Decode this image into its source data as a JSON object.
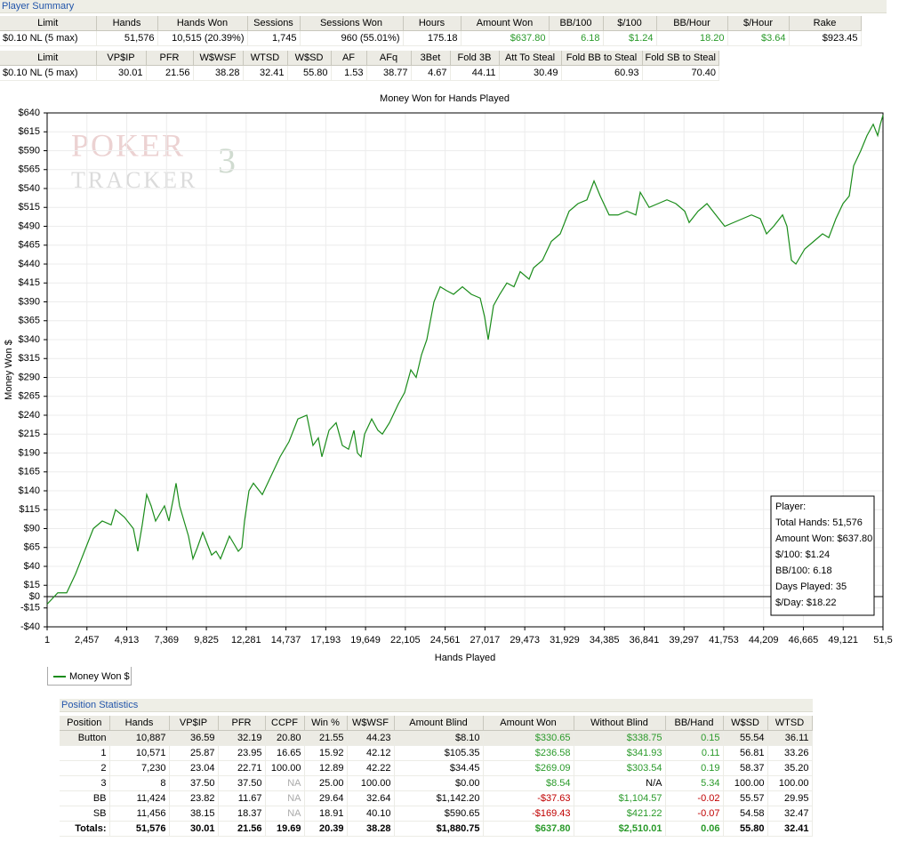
{
  "player_summary": {
    "title": "Player Summary",
    "tables": [
      {
        "headers": [
          "Limit",
          "Hands",
          "Hands Won",
          "Sessions",
          "Sessions Won",
          "Hours",
          "Amount Won",
          "BB/100",
          "$/100",
          "BB/Hour",
          "$/Hour",
          "Rake"
        ],
        "rows": [
          [
            "$0.10 NL (5 max)",
            "51,576",
            "10,515 (20.39%)",
            "1,745",
            "960 (55.01%)",
            "175.18",
            "$637.80",
            "6.18",
            "$1.24",
            "18.20",
            "$3.64",
            "$923.45"
          ]
        ]
      },
      {
        "headers": [
          "Limit",
          "VP$IP",
          "PFR",
          "W$WSF",
          "WTSD",
          "W$SD",
          "AF",
          "AFq",
          "3Bet",
          "Fold 3B",
          "Att To Steal",
          "Fold BB to Steal",
          "Fold SB to Steal"
        ],
        "rows": [
          [
            "$0.10 NL (5 max)",
            "30.01",
            "21.56",
            "38.28",
            "32.41",
            "55.80",
            "1.53",
            "38.77",
            "4.67",
            "44.11",
            "30.49",
            "60.93",
            "70.40"
          ]
        ]
      }
    ]
  },
  "chart_data": {
    "type": "line",
    "title": "Money Won for Hands Played",
    "x_label": "Hands Played",
    "y_label": "Money Won $",
    "watermark": {
      "line1": "POKER",
      "line2": "TRACKER",
      "badge": "3"
    },
    "x": [
      1,
      658,
      1207,
      1755,
      2304,
      2853,
      3401,
      3950,
      4224,
      4773,
      5322,
      5596,
      5870,
      6145,
      6419,
      6693,
      6968,
      7242,
      7517,
      7791,
      7956,
      8175,
      8450,
      8724,
      8998,
      9273,
      9602,
      9876,
      10151,
      10425,
      10700,
      10974,
      11248,
      11523,
      11797,
      12017,
      12181,
      12456,
      12730,
      13279,
      13828,
      14376,
      14925,
      15474,
      16022,
      16406,
      16736,
      16955,
      17394,
      17833,
      18217,
      18601,
      18931,
      19150,
      19369,
      19589,
      20028,
      20412,
      20686,
      21125,
      21674,
      22058,
      22442,
      22771,
      23101,
      23430,
      23869,
      24253,
      24637,
      25076,
      25625,
      26174,
      26722,
      26997,
      27216,
      27545,
      27929,
      28368,
      28807,
      29191,
      29740,
      30015,
      30564,
      31112,
      31661,
      32210,
      32758,
      33307,
      33746,
      34130,
      34679,
      35228,
      35776,
      36325,
      36599,
      37148,
      37697,
      38245,
      38794,
      39343,
      39617,
      40166,
      40715,
      41263,
      41812,
      42361,
      42910,
      43459,
      44007,
      44391,
      44830,
      45379,
      45653,
      45928,
      46202,
      46751,
      47300,
      47848,
      48232,
      48671,
      49110,
      49494,
      49767,
      50206,
      50590,
      50974,
      51249,
      51413,
      51576
    ],
    "series": [
      {
        "name": "Money Won $",
        "color": "#1a8c1a",
        "values": [
          -10,
          5,
          5,
          30,
          60,
          90,
          100,
          95,
          115,
          105,
          90,
          60,
          95,
          135,
          120,
          100,
          110,
          120,
          100,
          130,
          150,
          120,
          100,
          80,
          50,
          65,
          85,
          70,
          55,
          60,
          50,
          65,
          80,
          70,
          60,
          65,
          100,
          140,
          150,
          135,
          160,
          185,
          205,
          235,
          240,
          200,
          210,
          185,
          220,
          230,
          200,
          195,
          220,
          190,
          185,
          215,
          235,
          220,
          215,
          230,
          255,
          270,
          300,
          290,
          320,
          340,
          390,
          410,
          405,
          400,
          410,
          400,
          395,
          370,
          340,
          385,
          400,
          415,
          410,
          430,
          420,
          435,
          445,
          470,
          480,
          510,
          520,
          525,
          550,
          530,
          505,
          505,
          510,
          505,
          535,
          515,
          520,
          525,
          520,
          510,
          495,
          510,
          520,
          505,
          490,
          495,
          500,
          505,
          500,
          480,
          490,
          505,
          490,
          445,
          440,
          460,
          470,
          480,
          475,
          500,
          520,
          530,
          570,
          590,
          610,
          625,
          610,
          625,
          637
        ]
      }
    ],
    "xlim": [
      1,
      51577
    ],
    "xticks": [
      1,
      {
        "value": 2457,
        "label": "2,457"
      },
      {
        "value": 4913,
        "label": "4,913"
      },
      {
        "value": 7369,
        "label": "7,369"
      },
      {
        "value": 9825,
        "label": "9,825"
      },
      {
        "value": 12281,
        "label": "12,281"
      },
      {
        "value": 14737,
        "label": "14,737"
      },
      {
        "value": 17193,
        "label": "17,193"
      },
      {
        "value": 19649,
        "label": "19,649"
      },
      {
        "value": 22105,
        "label": "22,105"
      },
      {
        "value": 24561,
        "label": "24,561"
      },
      {
        "value": 27017,
        "label": "27,017"
      },
      {
        "value": 29473,
        "label": "29,473"
      },
      {
        "value": 31929,
        "label": "31,929"
      },
      {
        "value": 34385,
        "label": "34,385"
      },
      {
        "value": 36841,
        "label": "36,841"
      },
      {
        "value": 39297,
        "label": "39,297"
      },
      {
        "value": 41753,
        "label": "41,753"
      },
      {
        "value": 44209,
        "label": "44,209"
      },
      {
        "value": 46665,
        "label": "46,665"
      },
      {
        "value": 49121,
        "label": "49,121"
      },
      {
        "value": 51577,
        "label": "51,5"
      }
    ],
    "ylim": [
      -40,
      640
    ],
    "yticks": [
      {
        "value": 640,
        "label": "$640"
      },
      {
        "value": 615,
        "label": "$615"
      },
      {
        "value": 590,
        "label": "$590"
      },
      {
        "value": 565,
        "label": "$565"
      },
      {
        "value": 540,
        "label": "$540"
      },
      {
        "value": 515,
        "label": "$515"
      },
      {
        "value": 490,
        "label": "$490"
      },
      {
        "value": 465,
        "label": "$465"
      },
      {
        "value": 440,
        "label": "$440"
      },
      {
        "value": 415,
        "label": "$415"
      },
      {
        "value": 390,
        "label": "$390"
      },
      {
        "value": 365,
        "label": "$365"
      },
      {
        "value": 340,
        "label": "$340"
      },
      {
        "value": 315,
        "label": "$315"
      },
      {
        "value": 290,
        "label": "$290"
      },
      {
        "value": 265,
        "label": "$265"
      },
      {
        "value": 240,
        "label": "$240"
      },
      {
        "value": 215,
        "label": "$215"
      },
      {
        "value": 190,
        "label": "$190"
      },
      {
        "value": 165,
        "label": "$165"
      },
      {
        "value": 140,
        "label": "$140"
      },
      {
        "value": 115,
        "label": "$115"
      },
      {
        "value": 90,
        "label": "$90"
      },
      {
        "value": 65,
        "label": "$65"
      },
      {
        "value": 40,
        "label": "$40"
      },
      {
        "value": 15,
        "label": "$15"
      },
      {
        "value": 0,
        "label": "$0"
      },
      {
        "value": -15,
        "label": "-$15"
      },
      {
        "value": -40,
        "label": "-$40"
      }
    ],
    "grid": true,
    "annotations": [
      "Player:",
      "Total Hands: 51,576",
      "Amount Won: $637.80",
      "$/100: $1.24",
      "BB/100: 6.18",
      "Days Played: 35",
      "$/Day: $18.22"
    ]
  },
  "position_statistics": {
    "title": "Position Statistics",
    "headers": [
      "Position",
      "Hands",
      "VP$IP",
      "PFR",
      "CCPF",
      "Win %",
      "W$WSF",
      "Amount Blind",
      "Amount Won",
      "Without Blind",
      "BB/Hand",
      "W$SD",
      "WTSD"
    ],
    "rows": [
      [
        "Button",
        "10,887",
        "36.59",
        "32.19",
        "20.80",
        "21.55",
        "44.23",
        "$8.10",
        "$330.65",
        "$338.75",
        "0.15",
        "55.54",
        "36.11"
      ],
      [
        "1",
        "10,571",
        "25.87",
        "23.95",
        "16.65",
        "15.92",
        "42.12",
        "$105.35",
        "$236.58",
        "$341.93",
        "0.11",
        "56.81",
        "33.26"
      ],
      [
        "2",
        "7,230",
        "23.04",
        "22.71",
        "100.00",
        "12.89",
        "42.22",
        "$34.45",
        "$269.09",
        "$303.54",
        "0.19",
        "58.37",
        "35.20"
      ],
      [
        "3",
        "8",
        "37.50",
        "37.50",
        "NA",
        "25.00",
        "100.00",
        "$0.00",
        "$8.54",
        "N/A",
        "5.34",
        "100.00",
        "100.00"
      ],
      [
        "BB",
        "11,424",
        "23.82",
        "11.67",
        "NA",
        "29.64",
        "32.64",
        "$1,142.20",
        "-$37.63",
        "$1,104.57",
        "-0.02",
        "55.57",
        "29.95"
      ],
      [
        "SB",
        "11,456",
        "38.15",
        "18.37",
        "NA",
        "18.91",
        "40.10",
        "$590.65",
        "-$169.43",
        "$421.22",
        "-0.07",
        "54.58",
        "32.47"
      ],
      [
        "Totals:",
        "51,576",
        "30.01",
        "21.56",
        "19.69",
        "20.39",
        "38.28",
        "$1,880.75",
        "$637.80",
        "$2,510.01",
        "0.06",
        "55.80",
        "32.41"
      ]
    ]
  }
}
